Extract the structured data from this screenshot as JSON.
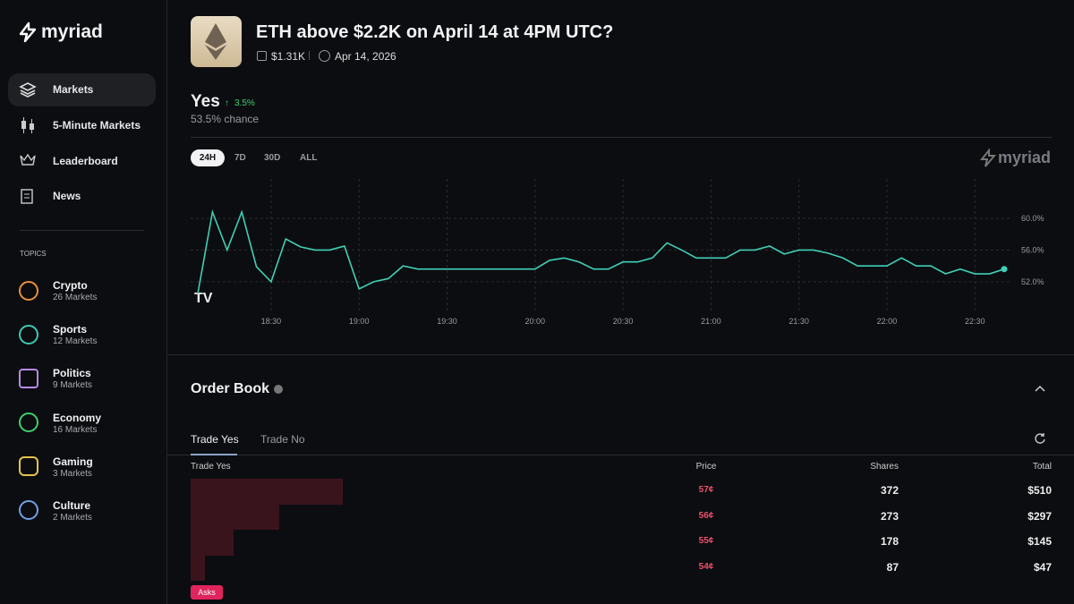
{
  "sidebar": {
    "brand": "myriad",
    "nav": [
      "Markets",
      "5-Minute Markets",
      "Leaderboard",
      "News"
    ],
    "topics_heading": "TOPICS",
    "topics": [
      {
        "name": "Crypto",
        "count": "26 Markets"
      },
      {
        "name": "Sports",
        "count": "12 Markets"
      },
      {
        "name": "Politics",
        "count": "9 Markets"
      },
      {
        "name": "Economy",
        "count": "16 Markets"
      },
      {
        "name": "Gaming",
        "count": "3 Markets"
      },
      {
        "name": "Culture",
        "count": "2 Markets"
      }
    ]
  },
  "header": {
    "title": "ETH above $2.2K on April 14 at 4PM UTC?",
    "volume": "$1.31K",
    "date": "Apr 14, 2026"
  },
  "outcome": {
    "name": "Yes",
    "change": "3.5%",
    "chance": "53.5% chance"
  },
  "ranges": [
    "24H",
    "7D",
    "30D",
    "ALL"
  ],
  "watermark": "myriad",
  "chart_data": {
    "type": "line",
    "color": "#3fd0b6",
    "categories": [
      null,
      null,
      null,
      null,
      null,
      "18:30",
      null,
      null,
      null,
      null,
      null,
      "19:00",
      null,
      null,
      null,
      null,
      null,
      "19:30",
      null,
      null,
      null,
      null,
      null,
      "20:00",
      null,
      null,
      null,
      null,
      null,
      "20:30",
      null,
      null,
      null,
      null,
      null,
      "21:00",
      null,
      null,
      null,
      null,
      null,
      "21:30",
      null,
      null,
      null,
      null,
      null,
      "22:00",
      null,
      null,
      null,
      null,
      null,
      "22:30",
      null,
      null
    ],
    "values": [
      50.5,
      60.8,
      56,
      60.8,
      53.9,
      52,
      57.4,
      56.4,
      56,
      56,
      56.5,
      51.1,
      52,
      52.4,
      54,
      53.6,
      53.6,
      53.6,
      53.6,
      53.6,
      53.6,
      53.6,
      53.6,
      53.6,
      54.7,
      55,
      54.5,
      53.6,
      53.6,
      54.5,
      54.5,
      55,
      56.9,
      56,
      55,
      55,
      55,
      56,
      56,
      56.5,
      55.5,
      56,
      56,
      55.6,
      55,
      54,
      54,
      54,
      55,
      54,
      54,
      53,
      53.6,
      53,
      53,
      53.6
    ],
    "ylim": [
      48.6,
      64.4
    ],
    "yticks": [
      {
        "value": 52,
        "label": "52.0%"
      },
      {
        "value": 56,
        "label": "56.0%"
      },
      {
        "value": 60,
        "label": "60.0%"
      }
    ],
    "grid": true
  },
  "order_book": {
    "title": "Order Book",
    "tabs": [
      "Trade Yes",
      "Trade No"
    ],
    "columns": [
      "Trade Yes",
      "Price",
      "Shares",
      "Total"
    ],
    "asks": {
      "prices": [
        "57¢",
        "56¢",
        "55¢",
        "54¢"
      ],
      "shares": [
        372,
        273,
        178,
        87
      ],
      "totals": [
        510,
        297,
        145,
        47
      ],
      "value_labels": [
        "$510",
        "$297",
        "$145",
        "$47"
      ]
    },
    "asks_label": "Asks"
  }
}
